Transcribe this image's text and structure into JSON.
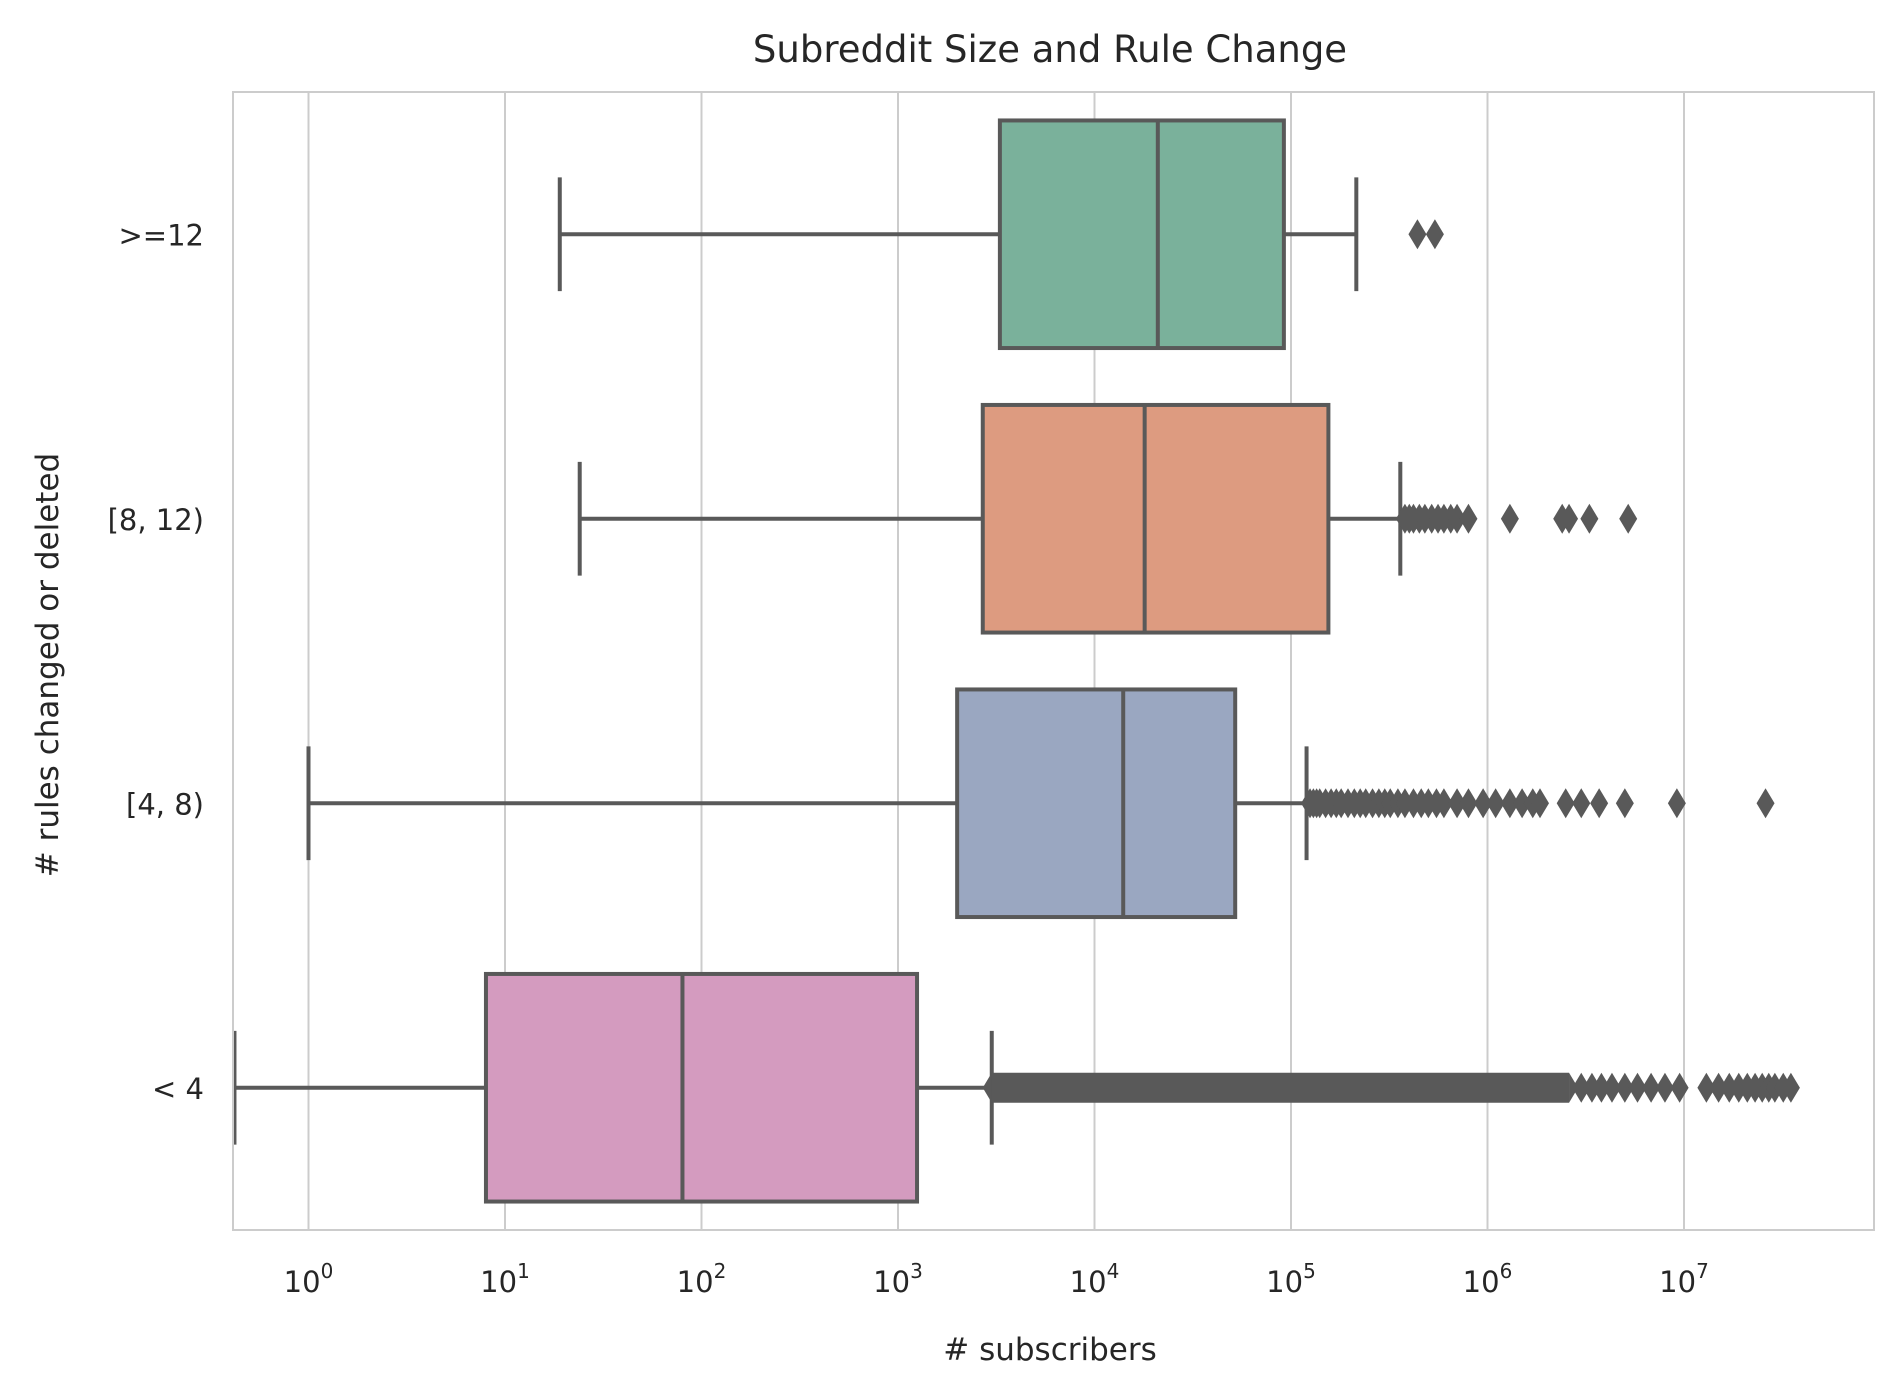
{
  "chart_data": {
    "type": "box",
    "orientation": "horizontal",
    "title": "Subreddit Size and Rule Change",
    "xlabel": "# subscribers",
    "ylabel": "# rules changed or deleted",
    "xscale": "log",
    "xlim": [
      0.42,
      60000000
    ],
    "grid": {
      "x": true,
      "y": false
    },
    "x_tick_bases": [
      "10",
      "10",
      "10",
      "10",
      "10",
      "10",
      "10",
      "10"
    ],
    "x_tick_exponents": [
      "0",
      "1",
      "2",
      "3",
      "4",
      "5",
      "6",
      "7"
    ],
    "x_tick_values": [
      1,
      10,
      100,
      1000,
      10000,
      100000,
      1000000,
      10000000
    ],
    "categories": [
      ">=12",
      "[8, 12)",
      "[4, 8)",
      "< 4"
    ],
    "colors": {
      "box_edge": "#595959",
      "grid": "#cccccc",
      "axes_edge": "#cccccc",
      "text": "#262626",
      "series": [
        "#7ab19b",
        "#dd9b80",
        "#9aa7c1",
        "#d49bbf"
      ]
    },
    "boxes": [
      {
        "category": ">=12",
        "whisker_low": 19,
        "q1": 3300,
        "median": 21000,
        "q3": 92000,
        "whisker_high": 215000,
        "outliers": [
          440000,
          540000
        ]
      },
      {
        "category": "[8, 12)",
        "whisker_low": 24,
        "q1": 2700,
        "median": 18000,
        "q3": 155000,
        "whisker_high": 360000,
        "outliers": [
          380000,
          400000,
          420000,
          450000,
          480000,
          520000,
          560000,
          600000,
          650000,
          700000,
          800000,
          1300000,
          2400000,
          2600000,
          3300000,
          5200000
        ]
      },
      {
        "category": "[4, 8)",
        "whisker_low": 1,
        "q1": 2000,
        "median": 14000,
        "q3": 52000,
        "whisker_high": 120000,
        "outliers": [
          125000,
          130000,
          135000,
          140000,
          150000,
          160000,
          170000,
          180000,
          195000,
          210000,
          225000,
          240000,
          260000,
          280000,
          300000,
          320000,
          350000,
          380000,
          420000,
          460000,
          500000,
          550000,
          600000,
          700000,
          800000,
          950000,
          1100000,
          1300000,
          1500000,
          1700000,
          1850000,
          2500000,
          3000000,
          3700000,
          5000000,
          9200000,
          26000000
        ]
      },
      {
        "category": "< 4",
        "whisker_low": 0.42,
        "q1": 8,
        "median": 80,
        "q3": 1250,
        "whisker_high": 3000,
        "outliers_dense_range": [
          3000,
          2600000
        ],
        "outliers": [
          3000000,
          3400000,
          3800000,
          4300000,
          5000000,
          5800000,
          6800000,
          8000000,
          9500000,
          13000000,
          15000000,
          17000000,
          19000000,
          21000000,
          23000000,
          25000000,
          27000000,
          29000000,
          32000000,
          35000000
        ]
      }
    ]
  }
}
